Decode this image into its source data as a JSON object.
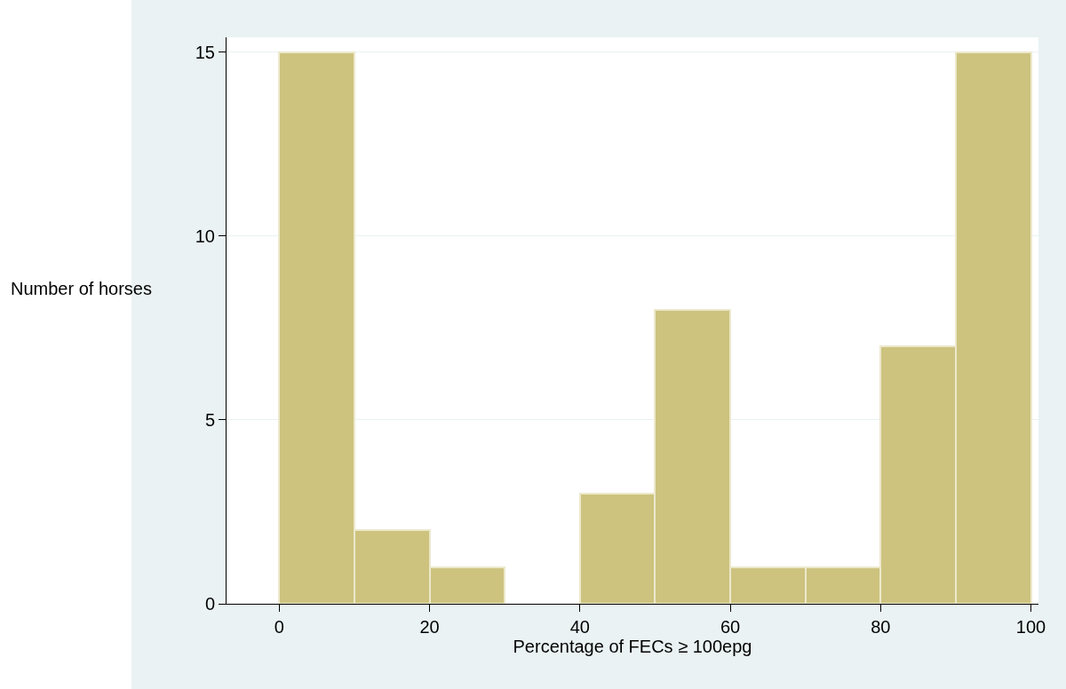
{
  "chart_data": {
    "type": "histogram",
    "xlabel": "Percentage of FECs ≥ 100epg",
    "ylabel": "Number of horses",
    "bins": [
      0,
      10,
      20,
      30,
      40,
      50,
      60,
      70,
      80,
      90,
      100
    ],
    "values": [
      15,
      2,
      1,
      0,
      3,
      8,
      1,
      1,
      7,
      15
    ],
    "color": "#cdc37f",
    "xlim": [
      -7,
      101
    ],
    "xticks": [
      0,
      20,
      40,
      60,
      80,
      100
    ],
    "ylim": [
      0,
      15.4
    ],
    "yticks": [
      0,
      5,
      10,
      15
    ],
    "grid": "y"
  }
}
